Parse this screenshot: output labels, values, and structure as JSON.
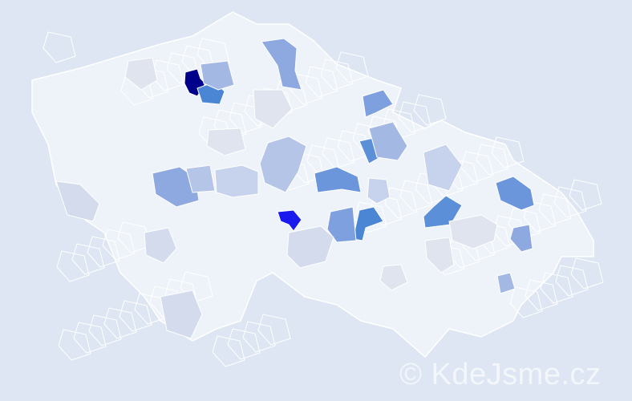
{
  "map": {
    "background_color": "#dde6f2",
    "base_region_color": "#eef2f9",
    "border_color": "#ffffff",
    "highlighted_region_colors": [
      "#00008b",
      "#1a1aee",
      "#4a86d4",
      "#5b8fd8",
      "#6c96dc",
      "#7fa0de",
      "#8ea9e0",
      "#a4b8e4",
      "#b5c5e8",
      "#c7d2ec",
      "#d3dbed",
      "#e0e4ee"
    ]
  },
  "watermark": "© KdeJsme.cz"
}
